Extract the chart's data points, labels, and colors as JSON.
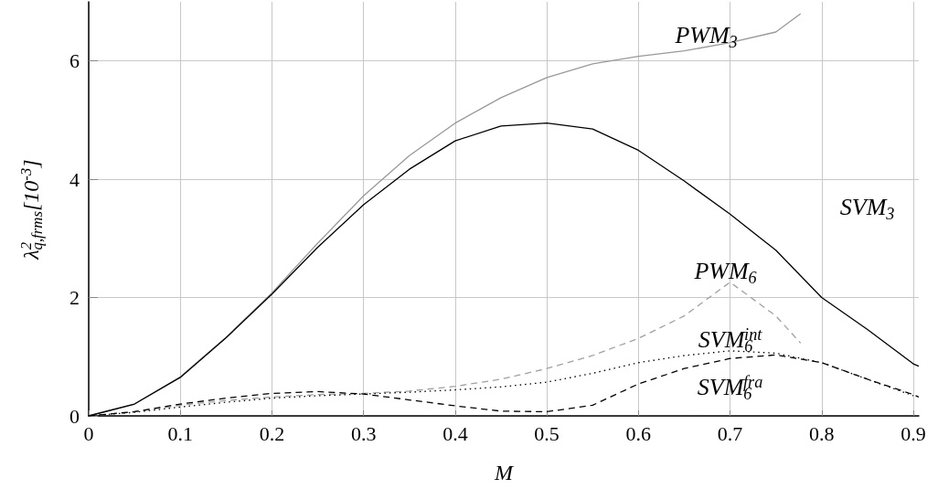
{
  "chart_data": {
    "type": "line",
    "xlabel": "M",
    "ylabel": "λ$^{2}$$_{q,frms}$[10$^{-3}$]",
    "xlim": [
      0,
      0.906
    ],
    "xticks": [
      0,
      0.1,
      0.2,
      0.3,
      0.4,
      0.5,
      0.6,
      0.7,
      0.8,
      0.9
    ],
    "ylim": [
      0,
      7
    ],
    "yticks": [
      0,
      2,
      4,
      6
    ],
    "grid": true,
    "legend": false,
    "marker": "none",
    "series": [
      {
        "name": "PWM$_{3}$",
        "color": "#999999",
        "line_style": "solid",
        "x": [
          0,
          0.05,
          0.1,
          0.15,
          0.2,
          0.25,
          0.3,
          0.35,
          0.4,
          0.45,
          0.5,
          0.55,
          0.6,
          0.65,
          0.7,
          0.75,
          0.777
        ],
        "values": [
          0,
          0.2,
          0.66,
          1.33,
          2.08,
          2.92,
          3.72,
          4.4,
          4.95,
          5.38,
          5.72,
          5.95,
          6.08,
          6.17,
          6.31,
          6.49,
          6.8
        ]
      },
      {
        "name": "SVM$_{3}$",
        "color": "#000000",
        "line_style": "solid",
        "x": [
          0,
          0.05,
          0.1,
          0.15,
          0.2,
          0.25,
          0.3,
          0.35,
          0.4,
          0.45,
          0.5,
          0.55,
          0.6,
          0.65,
          0.7,
          0.75,
          0.8,
          0.85,
          0.9,
          0.906
        ],
        "values": [
          0,
          0.2,
          0.65,
          1.32,
          2.06,
          2.85,
          3.57,
          4.17,
          4.65,
          4.9,
          4.95,
          4.85,
          4.49,
          3.97,
          3.41,
          2.8,
          2.0,
          1.46,
          0.88,
          0.84
        ]
      },
      {
        "name": "PWM$_{6}$",
        "color": "#a0a0a0",
        "line_style": "dashed",
        "x": [
          0,
          0.05,
          0.1,
          0.15,
          0.2,
          0.25,
          0.3,
          0.35,
          0.4,
          0.45,
          0.5,
          0.55,
          0.6,
          0.65,
          0.7,
          0.75,
          0.777
        ],
        "values": [
          0,
          0.07,
          0.18,
          0.26,
          0.32,
          0.36,
          0.38,
          0.42,
          0.5,
          0.62,
          0.8,
          1.02,
          1.31,
          1.69,
          2.26,
          1.69,
          1.23
        ]
      },
      {
        "name": "SVM$_{6}$$^{int}$",
        "color": "#000000",
        "line_style": "dotted",
        "x": [
          0,
          0.05,
          0.1,
          0.15,
          0.2,
          0.25,
          0.3,
          0.35,
          0.4,
          0.45,
          0.5,
          0.55,
          0.6,
          0.65,
          0.7,
          0.75,
          0.8,
          0.85,
          0.9
        ],
        "values": [
          0,
          0.06,
          0.15,
          0.23,
          0.3,
          0.34,
          0.37,
          0.4,
          0.44,
          0.49,
          0.57,
          0.72,
          0.9,
          1.02,
          1.1,
          1.06,
          0.9,
          0.62,
          0.34
        ]
      },
      {
        "name": "SVM$_{6}$$^{fra}$",
        "color": "#000000",
        "line_style": "dashed",
        "x": [
          0,
          0.05,
          0.1,
          0.15,
          0.2,
          0.25,
          0.3,
          0.35,
          0.4,
          0.45,
          0.5,
          0.55,
          0.6,
          0.65,
          0.7,
          0.75,
          0.8,
          0.85,
          0.9,
          0.906
        ],
        "values": [
          0,
          0.07,
          0.2,
          0.3,
          0.38,
          0.41,
          0.37,
          0.27,
          0.17,
          0.08,
          0.07,
          0.18,
          0.54,
          0.8,
          0.97,
          1.03,
          0.9,
          0.62,
          0.36,
          0.32
        ]
      }
    ]
  }
}
